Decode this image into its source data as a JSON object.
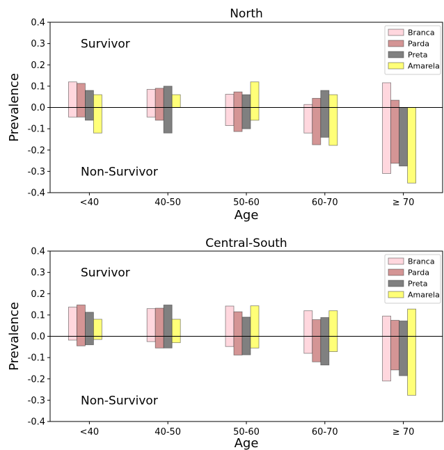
{
  "chart_data": [
    {
      "type": "bar",
      "title": "North",
      "xlabel": "Age",
      "ylabel": "Prevalence",
      "ylim": [
        -0.4,
        0.4
      ],
      "yticks": [
        "-0.4",
        "-0.3",
        "-0.2",
        "-0.1",
        "0.0",
        "0.1",
        "0.2",
        "0.3",
        "0.4"
      ],
      "categories": [
        "<40",
        "40-50",
        "50-60",
        "60-70",
        "≥ 70"
      ],
      "annotations": {
        "top": "Survivor",
        "bottom": "Non-Survivor"
      },
      "legend_position": "top-right",
      "series": [
        {
          "name": "Branca",
          "color": "#ffd7de",
          "survivor": [
            0.12,
            0.085,
            0.062,
            0.014,
            0.116
          ],
          "non_survivor": [
            -0.045,
            -0.045,
            -0.085,
            -0.12,
            -0.31
          ]
        },
        {
          "name": "Parda",
          "color": "#d49595",
          "survivor": [
            0.113,
            0.09,
            0.073,
            0.043,
            0.034
          ],
          "non_survivor": [
            -0.045,
            -0.06,
            -0.113,
            -0.175,
            -0.262
          ]
        },
        {
          "name": "Preta",
          "color": "#808080",
          "survivor": [
            0.08,
            0.1,
            0.06,
            0.08,
            0.0
          ],
          "non_survivor": [
            -0.06,
            -0.12,
            -0.1,
            -0.14,
            -0.275
          ]
        },
        {
          "name": "Amarela",
          "color": "#ffff78",
          "survivor": [
            0.06,
            0.06,
            0.12,
            0.06,
            0.0
          ],
          "non_survivor": [
            -0.12,
            0.0,
            -0.06,
            -0.178,
            -0.355
          ]
        }
      ]
    },
    {
      "type": "bar",
      "title": "Central-South",
      "xlabel": "Age",
      "ylabel": "Prevalence",
      "ylim": [
        -0.4,
        0.4
      ],
      "yticks": [
        "-0.4",
        "-0.3",
        "-0.2",
        "-0.1",
        "0.0",
        "0.1",
        "0.2",
        "0.3",
        "0.4"
      ],
      "categories": [
        "<40",
        "40-50",
        "50-60",
        "60-70",
        "≥ 70"
      ],
      "annotations": {
        "top": "Survivor",
        "bottom": "Non-Survivor"
      },
      "legend_position": "top-right",
      "series": [
        {
          "name": "Branca",
          "color": "#ffd7de",
          "survivor": [
            0.137,
            0.13,
            0.142,
            0.12,
            0.095
          ],
          "non_survivor": [
            -0.018,
            -0.025,
            -0.048,
            -0.08,
            -0.21
          ]
        },
        {
          "name": "Parda",
          "color": "#d49595",
          "survivor": [
            0.147,
            0.132,
            0.115,
            0.078,
            0.075
          ],
          "non_survivor": [
            -0.045,
            -0.055,
            -0.088,
            -0.12,
            -0.158
          ]
        },
        {
          "name": "Preta",
          "color": "#808080",
          "survivor": [
            0.113,
            0.147,
            0.09,
            0.088,
            0.072
          ],
          "non_survivor": [
            -0.04,
            -0.055,
            -0.087,
            -0.135,
            -0.185
          ]
        },
        {
          "name": "Amarela",
          "color": "#ffff78",
          "survivor": [
            0.08,
            0.08,
            0.143,
            0.12,
            0.128
          ],
          "non_survivor": [
            -0.015,
            -0.03,
            -0.055,
            -0.072,
            -0.277
          ]
        }
      ]
    }
  ]
}
